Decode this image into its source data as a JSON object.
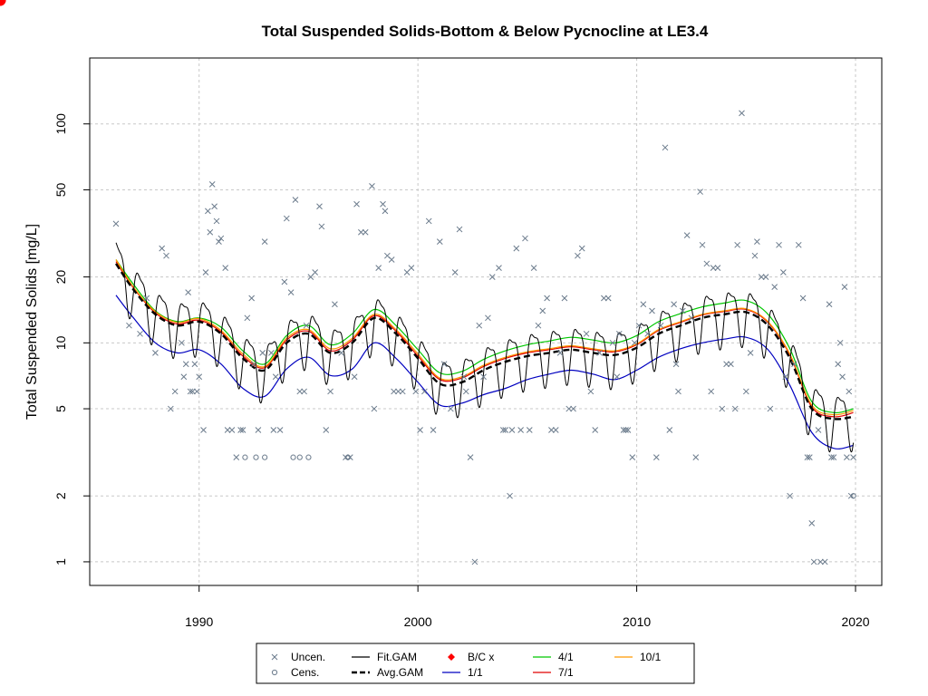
{
  "chart_data": {
    "type": "scatter",
    "title": "Total Suspended Solids-Bottom & Below Pycnocline at LE3.4",
    "xlabel": "",
    "ylabel": "Total Suspended Solids [mg/L]",
    "y_scale": "log",
    "xlim": [
      1985,
      2021.2
    ],
    "ylim": [
      0.78,
      200
    ],
    "x_ticks": [
      1990,
      2000,
      2010,
      2020
    ],
    "x_tick_labels": [
      "1990",
      "2000",
      "2010",
      "2020"
    ],
    "y_ticks": [
      1,
      2,
      5,
      10,
      20,
      50,
      100
    ],
    "y_tick_labels": [
      "1",
      "2",
      "5",
      "10",
      "20",
      "50",
      "100"
    ],
    "grid": true,
    "legend_position": "bottom",
    "colors": {
      "uncen": "#6b7b8c",
      "cens": "#6b7b8c",
      "fit_gam": "#000000",
      "avg_gam": "#000000",
      "bc": "#ff0000",
      "series_1_1": "#0000c0",
      "series_4_1": "#00c800",
      "series_7_1": "#e00000",
      "series_10_1": "#ff9900",
      "grid": "#c8c8c8"
    },
    "legend": [
      {
        "key": "uncen",
        "label": "Uncen.",
        "symbol": "x"
      },
      {
        "key": "cens",
        "label": "Cens.",
        "symbol": "o"
      },
      {
        "key": "fit",
        "label": "Fit.GAM",
        "symbol": "line"
      },
      {
        "key": "avg",
        "label": "Avg.GAM",
        "symbol": "dash"
      },
      {
        "key": "bc",
        "label": "B/C x",
        "symbol": "diamond"
      },
      {
        "key": "s11",
        "label": "1/1",
        "symbol": "line"
      },
      {
        "key": "s41",
        "label": "4/1",
        "symbol": "line"
      },
      {
        "key": "s71",
        "label": "7/1",
        "symbol": "line"
      },
      {
        "key": "s101",
        "label": "10/1",
        "symbol": "line"
      }
    ],
    "avg_gam": {
      "x": [
        1986.2,
        1987,
        1988,
        1989,
        1990,
        1991,
        1992,
        1993,
        1994,
        1995,
        1996,
        1997,
        1998,
        1999,
        2000,
        2001,
        2002,
        2003,
        2004,
        2005,
        2006,
        2007,
        2008,
        2009,
        2010,
        2011,
        2012,
        2013,
        2014,
        2015,
        2016,
        2017,
        2018,
        2019,
        2019.9
      ],
      "y": [
        23,
        17.5,
        13.5,
        12,
        12.5,
        11,
        8.5,
        7.5,
        10,
        11,
        9,
        10,
        13,
        11,
        8.5,
        6.5,
        6.6,
        7.5,
        8.2,
        8.7,
        9,
        9.3,
        9,
        8.8,
        9.5,
        11,
        12,
        13,
        13.5,
        13.8,
        12,
        8.5,
        5,
        4.5,
        4.6
      ]
    },
    "series": [
      {
        "name": "1/1",
        "x": [
          1986.2,
          1987,
          1988,
          1989,
          1990,
          1991,
          1992,
          1993,
          1994,
          1995,
          1996,
          1997,
          1998,
          1999,
          2000,
          2001,
          2002,
          2003,
          2004,
          2005,
          2006,
          2007,
          2008,
          2009,
          2010,
          2011,
          2012,
          2013,
          2014,
          2015,
          2016,
          2017,
          2018,
          2019,
          2019.9
        ],
        "y": [
          16.5,
          13,
          10,
          9,
          9.3,
          8,
          6.2,
          5.7,
          7.6,
          8.6,
          7.1,
          7.6,
          10,
          8.5,
          6.6,
          5.2,
          5.3,
          5.8,
          6.2,
          6.8,
          7.2,
          7.5,
          7.2,
          6.8,
          7.5,
          8.6,
          9.4,
          10,
          10.4,
          10.6,
          9.3,
          6.4,
          3.9,
          3.3,
          3.4
        ]
      },
      {
        "name": "4/1",
        "x": [
          1986.2,
          1987,
          1988,
          1989,
          1990,
          1991,
          1992,
          1993,
          1994,
          1995,
          1996,
          1997,
          1998,
          1999,
          2000,
          2001,
          2002,
          2003,
          2004,
          2005,
          2006,
          2007,
          2008,
          2009,
          2010,
          2011,
          2012,
          2013,
          2014,
          2015,
          2016,
          2017,
          2018,
          2019,
          2019.9
        ],
        "y": [
          24,
          18.5,
          14,
          12.5,
          13,
          11.8,
          9.2,
          8,
          10.8,
          12,
          9.8,
          11,
          14.2,
          12,
          9.3,
          7.3,
          7.4,
          8.4,
          9.2,
          9.8,
          10.2,
          10.6,
          10.3,
          10,
          10.8,
          12.5,
          13.6,
          14.6,
          15.2,
          15.6,
          13.5,
          9.4,
          5.4,
          4.8,
          5
        ]
      },
      {
        "name": "7/1",
        "x": [
          1986.2,
          1987,
          1988,
          1989,
          1990,
          1991,
          1992,
          1993,
          1994,
          1995,
          1996,
          1997,
          1998,
          1999,
          2000,
          2001,
          2002,
          2003,
          2004,
          2005,
          2006,
          2007,
          2008,
          2009,
          2010,
          2011,
          2012,
          2013,
          2014,
          2015,
          2016,
          2017,
          2018,
          2019,
          2019.9
        ],
        "y": [
          23.5,
          17.8,
          13.7,
          12.2,
          12.7,
          11.2,
          8.7,
          7.7,
          10.3,
          11.3,
          9.2,
          10.3,
          13.3,
          11.3,
          8.7,
          6.8,
          6.9,
          7.8,
          8.5,
          9,
          9.3,
          9.6,
          9.3,
          9.1,
          9.8,
          11.4,
          12.4,
          13.4,
          13.9,
          14.2,
          12.4,
          8.8,
          5.1,
          4.6,
          4.8
        ]
      },
      {
        "name": "10/1",
        "x": [
          1986.2,
          1987,
          1988,
          1989,
          1990,
          1991,
          1992,
          1993,
          1994,
          1995,
          1996,
          1997,
          1998,
          1999,
          2000,
          2001,
          2002,
          2003,
          2004,
          2005,
          2006,
          2007,
          2008,
          2009,
          2010,
          2011,
          2012,
          2013,
          2014,
          2015,
          2016,
          2017,
          2018,
          2019,
          2019.9
        ],
        "y": [
          24,
          18,
          13.9,
          12.4,
          12.9,
          11.4,
          8.9,
          7.8,
          10.5,
          11.5,
          9.4,
          10.5,
          13.5,
          11.5,
          8.9,
          6.9,
          7,
          7.9,
          8.6,
          9.1,
          9.4,
          9.7,
          9.4,
          9.2,
          9.9,
          11.5,
          12.5,
          13.5,
          14,
          14.3,
          12.5,
          8.9,
          5.2,
          4.7,
          4.9
        ]
      }
    ],
    "bc_points": [
      {
        "x": 1987.2,
        "y": 16.5
      },
      {
        "x": 2018.9,
        "y": 4.6
      }
    ],
    "uncen_points": [
      [
        1986.2,
        35
      ],
      [
        1986.8,
        12
      ],
      [
        1987.3,
        11
      ],
      [
        1987.6,
        16
      ],
      [
        1988.0,
        9
      ],
      [
        1988.3,
        27
      ],
      [
        1988.5,
        25
      ],
      [
        1988.7,
        5
      ],
      [
        1988.9,
        6
      ],
      [
        1989.2,
        10
      ],
      [
        1989.3,
        7
      ],
      [
        1989.4,
        8
      ],
      [
        1989.5,
        17
      ],
      [
        1989.6,
        6
      ],
      [
        1989.7,
        6
      ],
      [
        1989.8,
        8
      ],
      [
        1989.9,
        6
      ],
      [
        1990.0,
        7
      ],
      [
        1990.2,
        4
      ],
      [
        1990.3,
        21
      ],
      [
        1990.4,
        40
      ],
      [
        1990.5,
        32
      ],
      [
        1990.6,
        53
      ],
      [
        1990.7,
        42
      ],
      [
        1990.8,
        36
      ],
      [
        1990.9,
        29
      ],
      [
        1991.0,
        30
      ],
      [
        1991.2,
        22
      ],
      [
        1991.3,
        4
      ],
      [
        1991.5,
        4
      ],
      [
        1991.7,
        3
      ],
      [
        1991.9,
        4
      ],
      [
        1992.0,
        4
      ],
      [
        1992.2,
        13
      ],
      [
        1992.4,
        16
      ],
      [
        1992.5,
        8
      ],
      [
        1992.7,
        4
      ],
      [
        1992.9,
        9
      ],
      [
        1993.0,
        29
      ],
      [
        1993.3,
        9
      ],
      [
        1993.4,
        4
      ],
      [
        1993.5,
        7
      ],
      [
        1993.7,
        4
      ],
      [
        1993.9,
        19
      ],
      [
        1994.0,
        37
      ],
      [
        1994.2,
        17
      ],
      [
        1994.4,
        45
      ],
      [
        1994.6,
        6
      ],
      [
        1994.8,
        6
      ],
      [
        1994.9,
        12
      ],
      [
        1995.1,
        20
      ],
      [
        1995.3,
        21
      ],
      [
        1995.5,
        42
      ],
      [
        1995.6,
        34
      ],
      [
        1995.8,
        4
      ],
      [
        1996.0,
        6
      ],
      [
        1996.2,
        15
      ],
      [
        1996.5,
        9
      ],
      [
        1996.7,
        3
      ],
      [
        1996.9,
        3
      ],
      [
        1997.1,
        7
      ],
      [
        1997.2,
        43
      ],
      [
        1997.4,
        32
      ],
      [
        1997.6,
        32
      ],
      [
        1997.9,
        52
      ],
      [
        1998.0,
        5
      ],
      [
        1998.2,
        22
      ],
      [
        1998.4,
        43
      ],
      [
        1998.5,
        40
      ],
      [
        1998.6,
        25
      ],
      [
        1998.8,
        24
      ],
      [
        1998.9,
        6
      ],
      [
        1999.1,
        6
      ],
      [
        1999.3,
        6
      ],
      [
        1999.5,
        21
      ],
      [
        1999.7,
        22
      ],
      [
        1999.9,
        6
      ],
      [
        2000.1,
        4
      ],
      [
        2000.3,
        6
      ],
      [
        2000.5,
        36
      ],
      [
        2000.7,
        4
      ],
      [
        2001.0,
        29
      ],
      [
        2001.2,
        8
      ],
      [
        2001.5,
        5
      ],
      [
        2001.7,
        21
      ],
      [
        2001.9,
        33
      ],
      [
        2002.1,
        7
      ],
      [
        2002.2,
        6
      ],
      [
        2002.4,
        3
      ],
      [
        2002.6,
        1
      ],
      [
        2002.8,
        12
      ],
      [
        2003.0,
        7
      ],
      [
        2003.2,
        13
      ],
      [
        2003.4,
        20
      ],
      [
        2003.7,
        22
      ],
      [
        2003.9,
        4
      ],
      [
        2004.0,
        4
      ],
      [
        2004.2,
        2
      ],
      [
        2004.3,
        4
      ],
      [
        2004.5,
        27
      ],
      [
        2004.7,
        4
      ],
      [
        2004.9,
        30
      ],
      [
        2005.1,
        4
      ],
      [
        2005.3,
        22
      ],
      [
        2005.5,
        12
      ],
      [
        2005.7,
        14
      ],
      [
        2005.9,
        16
      ],
      [
        2006.1,
        4
      ],
      [
        2006.3,
        4
      ],
      [
        2006.5,
        9
      ],
      [
        2006.7,
        16
      ],
      [
        2006.9,
        5
      ],
      [
        2007.1,
        5
      ],
      [
        2007.3,
        25
      ],
      [
        2007.5,
        27
      ],
      [
        2007.7,
        11
      ],
      [
        2007.9,
        6
      ],
      [
        2008.1,
        4
      ],
      [
        2008.3,
        9
      ],
      [
        2008.5,
        16
      ],
      [
        2008.7,
        16
      ],
      [
        2008.9,
        10
      ],
      [
        2009.1,
        7
      ],
      [
        2009.2,
        11
      ],
      [
        2009.4,
        4
      ],
      [
        2009.5,
        4
      ],
      [
        2009.6,
        4
      ],
      [
        2009.8,
        3
      ],
      [
        2009.9,
        10
      ],
      [
        2010.1,
        12
      ],
      [
        2010.3,
        15
      ],
      [
        2010.5,
        11
      ],
      [
        2010.7,
        14
      ],
      [
        2010.9,
        3
      ],
      [
        2011.1,
        12
      ],
      [
        2011.3,
        78
      ],
      [
        2011.5,
        4
      ],
      [
        2011.7,
        15
      ],
      [
        2011.8,
        8
      ],
      [
        2011.9,
        6
      ],
      [
        2012.1,
        14
      ],
      [
        2012.3,
        31
      ],
      [
        2012.5,
        13
      ],
      [
        2012.7,
        3
      ],
      [
        2012.9,
        49
      ],
      [
        2013.0,
        28
      ],
      [
        2013.2,
        23
      ],
      [
        2013.4,
        6
      ],
      [
        2013.5,
        22
      ],
      [
        2013.7,
        22
      ],
      [
        2013.9,
        5
      ],
      [
        2014.1,
        8
      ],
      [
        2014.3,
        8
      ],
      [
        2014.5,
        5
      ],
      [
        2014.6,
        28
      ],
      [
        2014.8,
        112
      ],
      [
        2015.0,
        6
      ],
      [
        2015.2,
        9
      ],
      [
        2015.4,
        25
      ],
      [
        2015.5,
        29
      ],
      [
        2015.7,
        20
      ],
      [
        2015.9,
        20
      ],
      [
        2016.1,
        5
      ],
      [
        2016.3,
        18
      ],
      [
        2016.5,
        28
      ],
      [
        2016.7,
        21
      ],
      [
        2016.8,
        7
      ],
      [
        2017.0,
        2
      ],
      [
        2017.2,
        8
      ],
      [
        2017.4,
        28
      ],
      [
        2017.6,
        16
      ],
      [
        2017.8,
        3
      ],
      [
        2017.9,
        3
      ],
      [
        2018.0,
        1.5
      ],
      [
        2018.1,
        1
      ],
      [
        2018.3,
        4
      ],
      [
        2018.4,
        1
      ],
      [
        2018.6,
        1
      ],
      [
        2018.8,
        15
      ],
      [
        2018.9,
        3
      ],
      [
        2019.0,
        3
      ],
      [
        2019.2,
        8
      ],
      [
        2019.3,
        10
      ],
      [
        2019.4,
        7
      ],
      [
        2019.5,
        18
      ],
      [
        2019.6,
        3
      ],
      [
        2019.7,
        6
      ],
      [
        2019.8,
        2
      ],
      [
        2019.9,
        3
      ]
    ],
    "cens_points": [
      [
        1992.1,
        3
      ],
      [
        1992.6,
        3
      ],
      [
        1993.0,
        3
      ],
      [
        1994.3,
        3
      ],
      [
        1994.6,
        3
      ],
      [
        1995.0,
        3
      ],
      [
        1996.8,
        3
      ],
      [
        2019.9,
        2
      ]
    ]
  }
}
